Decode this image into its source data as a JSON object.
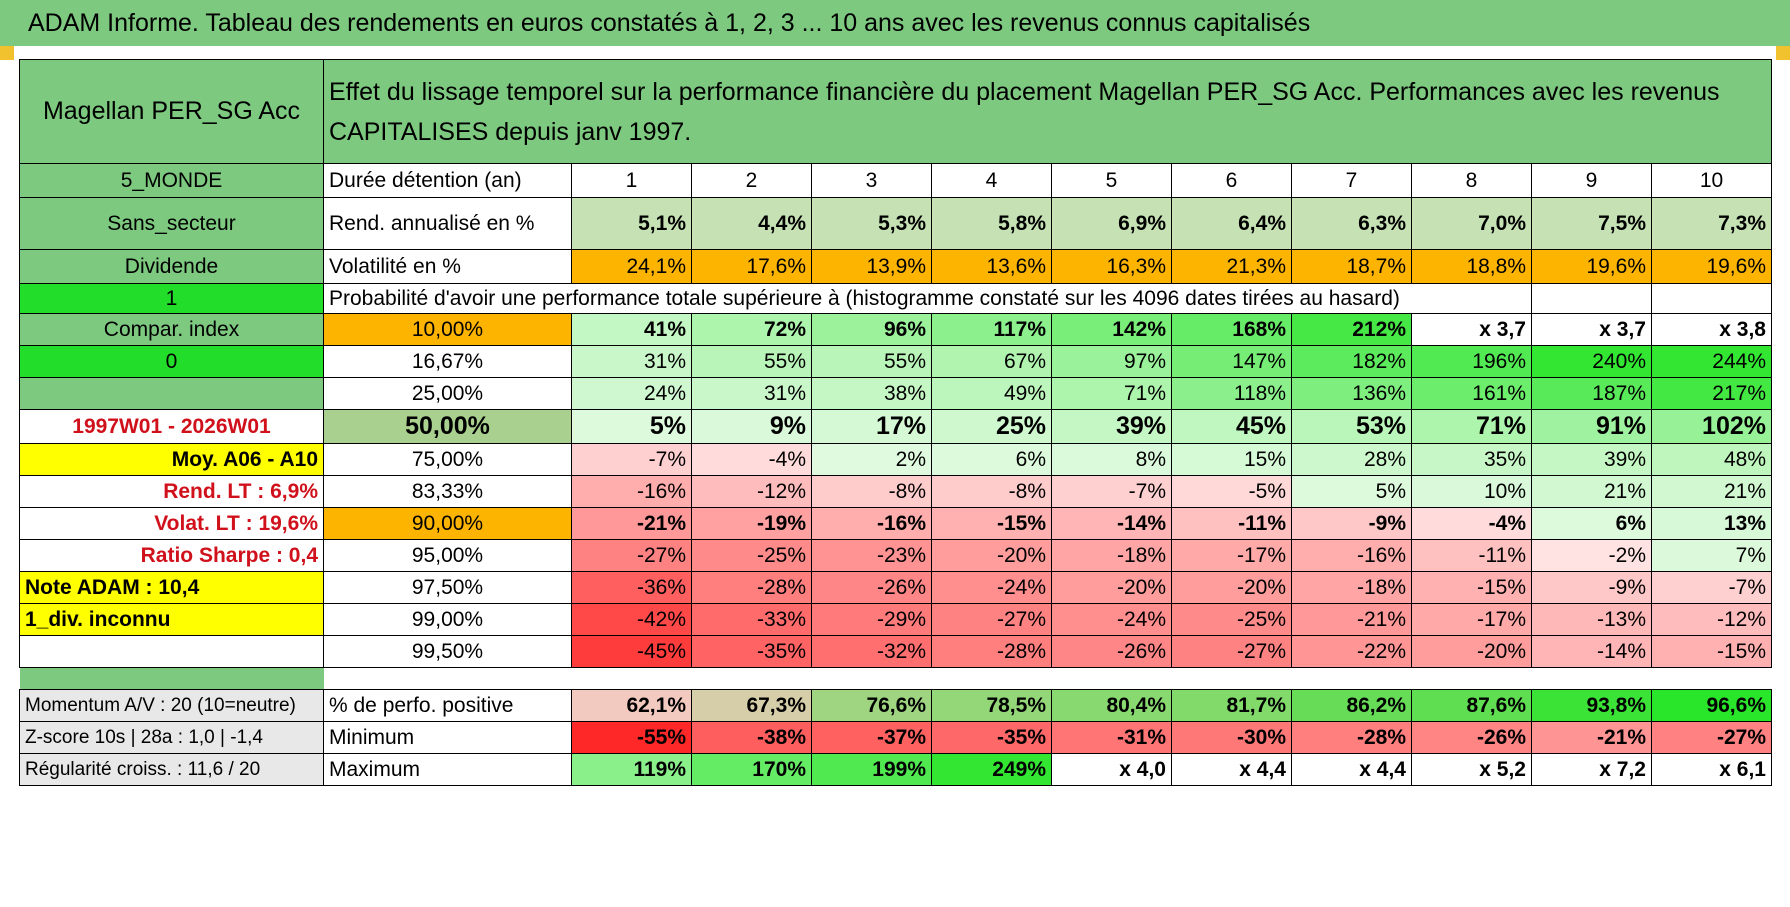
{
  "title": "ADAM Informe. Tableau des rendements en euros constatés à 1, 2, 3 ... 10 ans avec les revenus connus capitalisés",
  "fund_name": "Magellan PER_SG Acc",
  "description": "Effet du lissage temporel sur la performance financière du placement Magellan PER_SG Acc. Performances avec les revenus CAPITALISES depuis janv 1997.",
  "durations": [
    "1",
    "2",
    "3",
    "4",
    "5",
    "6",
    "7",
    "8",
    "9",
    "10"
  ],
  "left_labels": {
    "region": "5_MONDE",
    "sector": "Sans_secteur",
    "dividend": "Dividende",
    "value_one": "1",
    "compar": "Compar. index",
    "value_zero": "0",
    "period": "1997W01 - 2026W01",
    "moy": "Moy. A06 - A10",
    "rend_lt": "Rend. LT :    6,9%",
    "volat_lt": "Volat. LT :    19,6%",
    "sharpe": "Ratio Sharpe :    0,4",
    "note": "Note ADAM : 10,4",
    "div_inconnu": "1_div. inconnu"
  },
  "row_labels": {
    "duration": "Durée détention (an)",
    "rend": "Rend. annualisé en %",
    "vol": "Volatilité en %",
    "prob": "Probabilité d'avoir une performance totale supérieure à (histogramme constaté sur les 4096 dates tirées au hasard)"
  },
  "rend_values": [
    "5,1%",
    "4,4%",
    "5,3%",
    "5,8%",
    "6,9%",
    "6,4%",
    "6,3%",
    "7,0%",
    "7,5%",
    "7,3%"
  ],
  "vol_values": [
    "24,1%",
    "17,6%",
    "13,9%",
    "13,6%",
    "16,3%",
    "21,3%",
    "18,7%",
    "18,8%",
    "19,6%",
    "19,6%"
  ],
  "prob_rows": [
    {
      "p": "10,00%",
      "values": [
        "41%",
        "72%",
        "96%",
        "117%",
        "142%",
        "168%",
        "212%",
        "x 3,7",
        "x 3,7",
        "x 3,8"
      ]
    },
    {
      "p": "16,67%",
      "values": [
        "31%",
        "55%",
        "55%",
        "67%",
        "97%",
        "147%",
        "182%",
        "196%",
        "240%",
        "244%"
      ]
    },
    {
      "p": "25,00%",
      "values": [
        "24%",
        "31%",
        "38%",
        "49%",
        "71%",
        "118%",
        "136%",
        "161%",
        "187%",
        "217%"
      ]
    },
    {
      "p": "50,00%",
      "values": [
        "5%",
        "9%",
        "17%",
        "25%",
        "39%",
        "45%",
        "53%",
        "71%",
        "91%",
        "102%"
      ]
    },
    {
      "p": "75,00%",
      "values": [
        "-7%",
        "-4%",
        "2%",
        "6%",
        "8%",
        "15%",
        "28%",
        "35%",
        "39%",
        "48%"
      ]
    },
    {
      "p": "83,33%",
      "values": [
        "-16%",
        "-12%",
        "-8%",
        "-8%",
        "-7%",
        "-5%",
        "5%",
        "10%",
        "21%",
        "21%"
      ]
    },
    {
      "p": "90,00%",
      "values": [
        "-21%",
        "-19%",
        "-16%",
        "-15%",
        "-14%",
        "-11%",
        "-9%",
        "-4%",
        "6%",
        "13%"
      ]
    },
    {
      "p": "95,00%",
      "values": [
        "-27%",
        "-25%",
        "-23%",
        "-20%",
        "-18%",
        "-17%",
        "-16%",
        "-11%",
        "-2%",
        "7%"
      ]
    },
    {
      "p": "97,50%",
      "values": [
        "-36%",
        "-28%",
        "-26%",
        "-24%",
        "-20%",
        "-20%",
        "-18%",
        "-15%",
        "-9%",
        "-7%"
      ]
    },
    {
      "p": "99,00%",
      "values": [
        "-42%",
        "-33%",
        "-29%",
        "-27%",
        "-24%",
        "-25%",
        "-21%",
        "-17%",
        "-13%",
        "-12%"
      ]
    },
    {
      "p": "99,50%",
      "values": [
        "-45%",
        "-35%",
        "-32%",
        "-28%",
        "-26%",
        "-27%",
        "-22%",
        "-20%",
        "-14%",
        "-15%"
      ]
    }
  ],
  "bottom_rows": [
    {
      "left": "Momentum A/V : 20 (10=neutre)",
      "label": "% de perfo. positive",
      "values": [
        "62,1%",
        "67,3%",
        "76,6%",
        "78,5%",
        "80,4%",
        "81,7%",
        "86,2%",
        "87,6%",
        "93,8%",
        "96,6%"
      ]
    },
    {
      "left": "Z-score 10s | 28a : 1,0 | -1,4",
      "label": "Minimum",
      "values": [
        "-55%",
        "-38%",
        "-37%",
        "-35%",
        "-31%",
        "-30%",
        "-28%",
        "-26%",
        "-21%",
        "-27%"
      ]
    },
    {
      "left": "Régularité croiss. : 11,6 / 20",
      "label": "Maximum",
      "values": [
        "119%",
        "170%",
        "199%",
        "249%",
        "x 4,0",
        "x 4,4",
        "x 4,4",
        "x 5,2",
        "x 7,2",
        "x 6,1"
      ]
    }
  ],
  "colors": {
    "header_green": "#7dc97f",
    "bright_green": "#22dd2a",
    "orange": "#fdb400",
    "yellow": "#ffff00",
    "red_text": "#d0101a",
    "negative_red": "#f03c3c",
    "positive_green": "#3de83d"
  }
}
